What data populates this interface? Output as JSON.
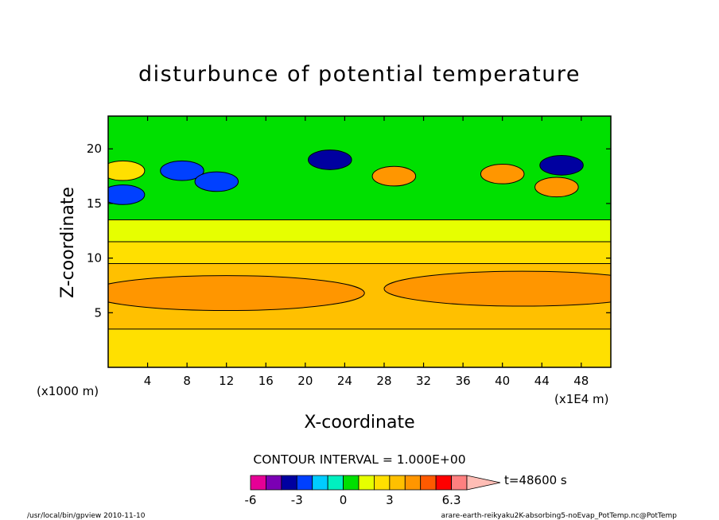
{
  "chart_data": {
    "type": "heatmap",
    "title": "disturbunce of potential temperature",
    "xlabel": "X-coordinate",
    "ylabel": "Z-coordinate",
    "x_unit": "(x1E4 m)",
    "y_unit": "(x1000 m)",
    "xlim": [
      0,
      51
    ],
    "ylim": [
      0,
      23
    ],
    "x_ticks": [
      4,
      8,
      12,
      16,
      20,
      24,
      28,
      32,
      36,
      40,
      44,
      48
    ],
    "y_ticks": [
      5,
      10,
      15,
      20
    ],
    "contour_interval": "CONTOUR INTERVAL = 1.000E+00",
    "time_label": "t=48600 s",
    "colorbar": {
      "tick_labels": [
        "-6",
        "-3",
        "0",
        "3",
        "6.3"
      ],
      "tick_values": [
        -6,
        -3,
        0,
        3,
        6.3
      ],
      "levels": [
        -6,
        -5,
        -4,
        -3,
        -2,
        -1,
        0,
        1,
        2,
        3,
        4,
        5,
        6,
        6.3
      ],
      "colors": [
        "#e60096",
        "#7b00b4",
        "#0000a0",
        "#0040ff",
        "#00ccff",
        "#00f0c0",
        "#00e000",
        "#e6ff00",
        "#ffe000",
        "#ffc000",
        "#ff9600",
        "#ff5a00",
        "#ff0000",
        "#ff8080",
        "#ffbdb5"
      ]
    },
    "layers": [
      {
        "z_from": 0,
        "z_to": 3.5,
        "value": 1.5
      },
      {
        "z_from": 3.5,
        "z_to": 9.5,
        "value": 2.5
      },
      {
        "z_from": 9.5,
        "z_to": 11.5,
        "value": 1.5
      },
      {
        "z_from": 11.5,
        "z_to": 13.5,
        "value": 0.5
      },
      {
        "z_from": 13.5,
        "z_to": 23,
        "value": -0.5
      }
    ],
    "features": [
      {
        "x": 12,
        "z": 6.8,
        "value": 3.5
      },
      {
        "x": 42,
        "z": 7.2,
        "value": 3.5
      },
      {
        "x": 1.5,
        "z": 18,
        "value": 1.5
      },
      {
        "x": 1.5,
        "z": 15.8,
        "value": -3.5
      },
      {
        "x": 7.5,
        "z": 18,
        "value": -3.5
      },
      {
        "x": 11,
        "z": 17,
        "value": -3.5
      },
      {
        "x": 22.5,
        "z": 19,
        "value": -4.5
      },
      {
        "x": 29,
        "z": 17.5,
        "value": 3.5
      },
      {
        "x": 40,
        "z": 17.7,
        "value": 3.5
      },
      {
        "x": 46,
        "z": 18.5,
        "value": -4.5
      },
      {
        "x": 45.5,
        "z": 16.5,
        "value": 3.5
      }
    ]
  },
  "footer": {
    "left": "/usr/local/bin/gpview  2010-11-10",
    "right": "arare-earth-reikyaku2K-absorbing5-noEvap_PotTemp.nc@PotTemp"
  }
}
